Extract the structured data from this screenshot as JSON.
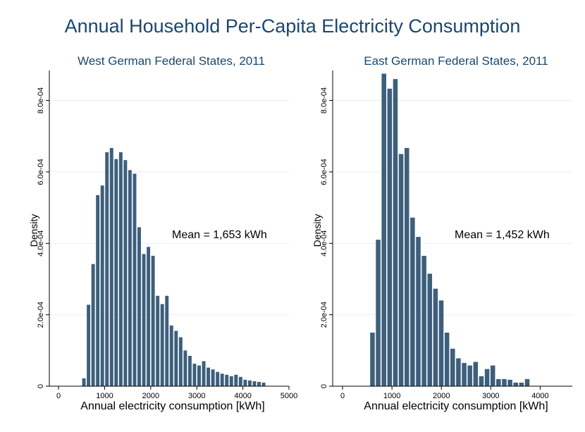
{
  "title": "Annual Household Per-Capita Electricity Consumption",
  "colors": {
    "bar": "#3d5f7c",
    "title": "#1a476f",
    "grid": "#eaeff4"
  },
  "chart_data": [
    {
      "type": "bar",
      "subtitle": "West German Federal States, 2011",
      "xlabel": "Annual electricity consumption [kWh]",
      "ylabel": "Density",
      "xlim": [
        -200,
        5000
      ],
      "ylim": [
        0,
        0.00088
      ],
      "xticks": [
        "0",
        "1000",
        "2000",
        "3000",
        "4000",
        "5000"
      ],
      "xtick_values": [
        0,
        1000,
        2000,
        3000,
        4000,
        5000
      ],
      "yticks": [
        "0",
        "2.0e-04",
        "4.0e-04",
        "6.0e-04",
        "8.0e-04"
      ],
      "ytick_values": [
        0,
        0.0002,
        0.0004,
        0.0006,
        0.0008
      ],
      "grid": true,
      "annotation": "Mean = 1,653 kWh",
      "bin_width": 100,
      "bins": [
        {
          "x": 550,
          "y": 2.2e-05
        },
        {
          "x": 650,
          "y": 0.000228
        },
        {
          "x": 750,
          "y": 0.000342
        },
        {
          "x": 850,
          "y": 0.000535
        },
        {
          "x": 950,
          "y": 0.000562
        },
        {
          "x": 1050,
          "y": 0.000655
        },
        {
          "x": 1150,
          "y": 0.000667
        },
        {
          "x": 1250,
          "y": 0.000636
        },
        {
          "x": 1350,
          "y": 0.000655
        },
        {
          "x": 1450,
          "y": 0.000633
        },
        {
          "x": 1550,
          "y": 0.000605
        },
        {
          "x": 1650,
          "y": 0.000595
        },
        {
          "x": 1750,
          "y": 0.000445
        },
        {
          "x": 1850,
          "y": 0.00037
        },
        {
          "x": 1950,
          "y": 0.00039
        },
        {
          "x": 2050,
          "y": 0.000365
        },
        {
          "x": 2150,
          "y": 0.000253
        },
        {
          "x": 2250,
          "y": 0.00023
        },
        {
          "x": 2350,
          "y": 0.000253
        },
        {
          "x": 2450,
          "y": 0.00017
        },
        {
          "x": 2550,
          "y": 0.000155
        },
        {
          "x": 2650,
          "y": 0.000137
        },
        {
          "x": 2750,
          "y": 0.0001
        },
        {
          "x": 2850,
          "y": 8.5e-05
        },
        {
          "x": 2950,
          "y": 6.3e-05
        },
        {
          "x": 3050,
          "y": 5.8e-05
        },
        {
          "x": 3150,
          "y": 7e-05
        },
        {
          "x": 3250,
          "y": 5.2e-05
        },
        {
          "x": 3350,
          "y": 4.7e-05
        },
        {
          "x": 3450,
          "y": 4e-05
        },
        {
          "x": 3550,
          "y": 3.5e-05
        },
        {
          "x": 3650,
          "y": 3.2e-05
        },
        {
          "x": 3750,
          "y": 2.8e-05
        },
        {
          "x": 3850,
          "y": 3.2e-05
        },
        {
          "x": 3950,
          "y": 2.6e-05
        },
        {
          "x": 4050,
          "y": 1.8e-05
        },
        {
          "x": 4150,
          "y": 1.6e-05
        },
        {
          "x": 4250,
          "y": 1.4e-05
        },
        {
          "x": 4350,
          "y": 1.2e-05
        },
        {
          "x": 4450,
          "y": 1e-05
        }
      ]
    },
    {
      "type": "bar",
      "subtitle": "East German Federal States, 2011",
      "xlabel": "Annual electricity consumption [kWh]",
      "ylabel": "Density",
      "xlim": [
        -200,
        4650
      ],
      "ylim": [
        0,
        0.00088
      ],
      "xticks": [
        "0",
        "1000",
        "2000",
        "3000",
        "4000"
      ],
      "xtick_values": [
        0,
        1000,
        2000,
        3000,
        4000
      ],
      "yticks": [
        "0",
        "2.0e-04",
        "4.0e-04",
        "6.0e-04",
        "8.0e-04"
      ],
      "ytick_values": [
        0,
        0.0002,
        0.0004,
        0.0006,
        0.0008
      ],
      "grid": true,
      "annotation": "Mean = 1,452 kWh",
      "bin_width": 116,
      "bins": [
        {
          "x": 605,
          "y": 0.00015
        },
        {
          "x": 721,
          "y": 0.00041
        },
        {
          "x": 837,
          "y": 0.000875
        },
        {
          "x": 953,
          "y": 0.000833
        },
        {
          "x": 1069,
          "y": 0.00086
        },
        {
          "x": 1185,
          "y": 0.00065
        },
        {
          "x": 1301,
          "y": 0.000667
        },
        {
          "x": 1417,
          "y": 0.000472
        },
        {
          "x": 1533,
          "y": 0.000418
        },
        {
          "x": 1649,
          "y": 0.000365
        },
        {
          "x": 1765,
          "y": 0.000315
        },
        {
          "x": 1881,
          "y": 0.000273
        },
        {
          "x": 1997,
          "y": 0.00024
        },
        {
          "x": 2113,
          "y": 0.00015
        },
        {
          "x": 2229,
          "y": 0.000105
        },
        {
          "x": 2345,
          "y": 7.8e-05
        },
        {
          "x": 2461,
          "y": 6.5e-05
        },
        {
          "x": 2577,
          "y": 5.8e-05
        },
        {
          "x": 2693,
          "y": 6.8e-05
        },
        {
          "x": 2809,
          "y": 2.8e-05
        },
        {
          "x": 2925,
          "y": 4.8e-05
        },
        {
          "x": 3041,
          "y": 5.8e-05
        },
        {
          "x": 3157,
          "y": 2e-05
        },
        {
          "x": 3273,
          "y": 2e-05
        },
        {
          "x": 3389,
          "y": 1.8e-05
        },
        {
          "x": 3505,
          "y": 1e-05
        },
        {
          "x": 3621,
          "y": 1e-05
        },
        {
          "x": 3737,
          "y": 2e-05
        }
      ]
    }
  ]
}
